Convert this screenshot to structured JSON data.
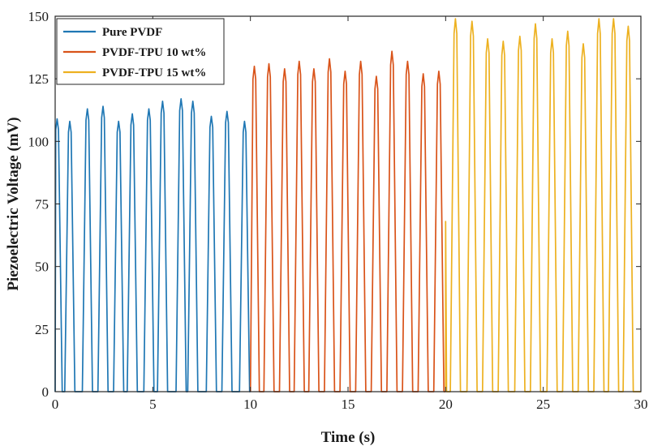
{
  "chart_data": {
    "type": "line",
    "title": "",
    "xlabel": "Time (s)",
    "ylabel": "Piezoelectric Voltage (mV)",
    "xlim": [
      0,
      30
    ],
    "ylim": [
      0,
      150
    ],
    "xticks": [
      "0",
      "5",
      "10",
      "15",
      "20",
      "25",
      "30"
    ],
    "yticks": [
      "0",
      "25",
      "50",
      "75",
      "100",
      "125",
      "150"
    ],
    "grid": false,
    "legend_position": "top-left",
    "series": [
      {
        "name": "Pure PVDF",
        "color": "#1f77b4",
        "x_range": [
          0,
          10
        ],
        "peak_times": [
          0.1,
          0.75,
          1.65,
          2.45,
          3.25,
          3.95,
          4.8,
          5.5,
          6.45,
          7.05,
          8.0,
          8.8,
          9.7
        ],
        "peak_values": [
          109,
          108,
          113,
          114,
          108,
          111,
          113,
          116,
          117,
          116,
          110,
          112,
          108
        ]
      },
      {
        "name": "PVDF-TPU 10 wt%",
        "color": "#d95319",
        "x_range": [
          10,
          20
        ],
        "peak_times": [
          10.2,
          10.95,
          11.75,
          12.5,
          13.25,
          14.05,
          14.85,
          15.65,
          16.45,
          17.25,
          18.05,
          18.85,
          19.65
        ],
        "peak_values": [
          130,
          131,
          129,
          132,
          129,
          133,
          128,
          132,
          126,
          136,
          132,
          127,
          128
        ]
      },
      {
        "name": "PVDF-TPU 15 wt%",
        "color": "#edb120",
        "x_range": [
          20,
          30
        ],
        "peak_times": [
          20.5,
          21.35,
          22.15,
          22.95,
          23.8,
          24.6,
          25.45,
          26.25,
          27.05,
          27.85,
          28.6,
          29.35
        ],
        "peak_values": [
          149,
          148,
          141,
          140,
          142,
          147,
          141,
          144,
          139,
          149,
          149,
          146
        ]
      }
    ]
  }
}
